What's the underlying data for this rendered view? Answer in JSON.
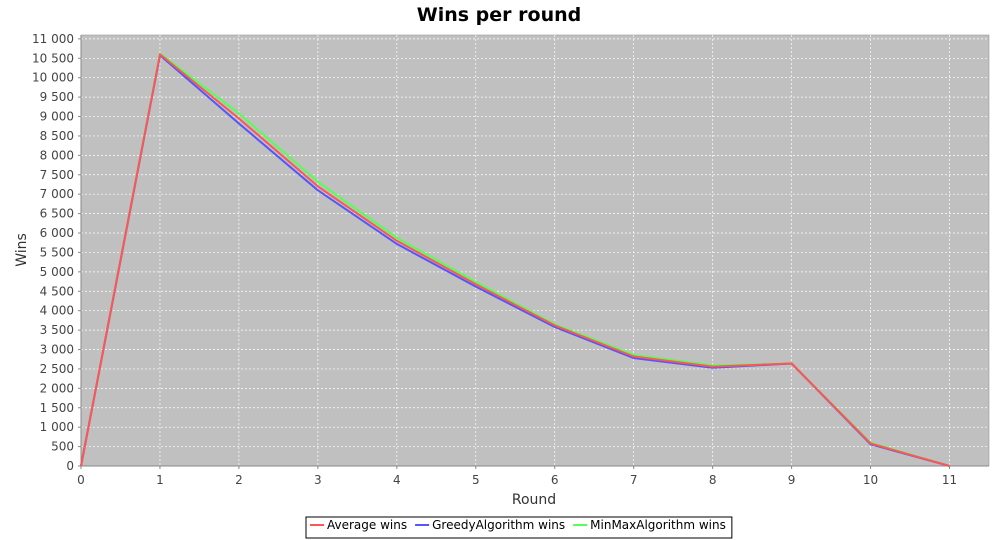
{
  "chart_data": {
    "type": "line",
    "title": "Wins per round",
    "xlabel": "Round",
    "ylabel": "Wins",
    "x": [
      0,
      1,
      2,
      3,
      4,
      5,
      6,
      7,
      8,
      9,
      10,
      11
    ],
    "xlim": [
      0,
      11.5
    ],
    "ylim": [
      0,
      11100
    ],
    "x_ticks": [
      "0",
      "1",
      "2",
      "3",
      "4",
      "5",
      "6",
      "7",
      "8",
      "9",
      "10",
      "11"
    ],
    "y_ticks": [
      "0",
      "500",
      "1 000",
      "1 500",
      "2 000",
      "2 500",
      "3 000",
      "3 500",
      "4 000",
      "4 500",
      "5 000",
      "5 500",
      "6 000",
      "6 500",
      "7 000",
      "7 500",
      "8 000",
      "8 500",
      "9 000",
      "9 500",
      "10 000",
      "10 500",
      "11 000"
    ],
    "grid": true,
    "legend_position": "bottom",
    "series": [
      {
        "name": "Average wins",
        "color": "#ff5555",
        "values": [
          0,
          10600,
          8950,
          7200,
          5800,
          4680,
          3620,
          2820,
          2560,
          2640,
          580,
          0
        ]
      },
      {
        "name": "GreedyAlgorithm wins",
        "color": "#5555ff",
        "values": [
          0,
          10580,
          8820,
          7100,
          5720,
          4620,
          3580,
          2780,
          2530,
          2640,
          560,
          0
        ]
      },
      {
        "name": "MinMaxAlgorithm wins",
        "color": "#55ff55",
        "values": [
          0,
          10620,
          9080,
          7320,
          5880,
          4740,
          3650,
          2860,
          2590,
          2640,
          600,
          0
        ]
      }
    ],
    "draw_order": [
      2,
      1,
      0
    ],
    "colors": {
      "plot_background": "#c0c0c0",
      "gridline": "#ffffff",
      "axis": "#888888"
    }
  }
}
